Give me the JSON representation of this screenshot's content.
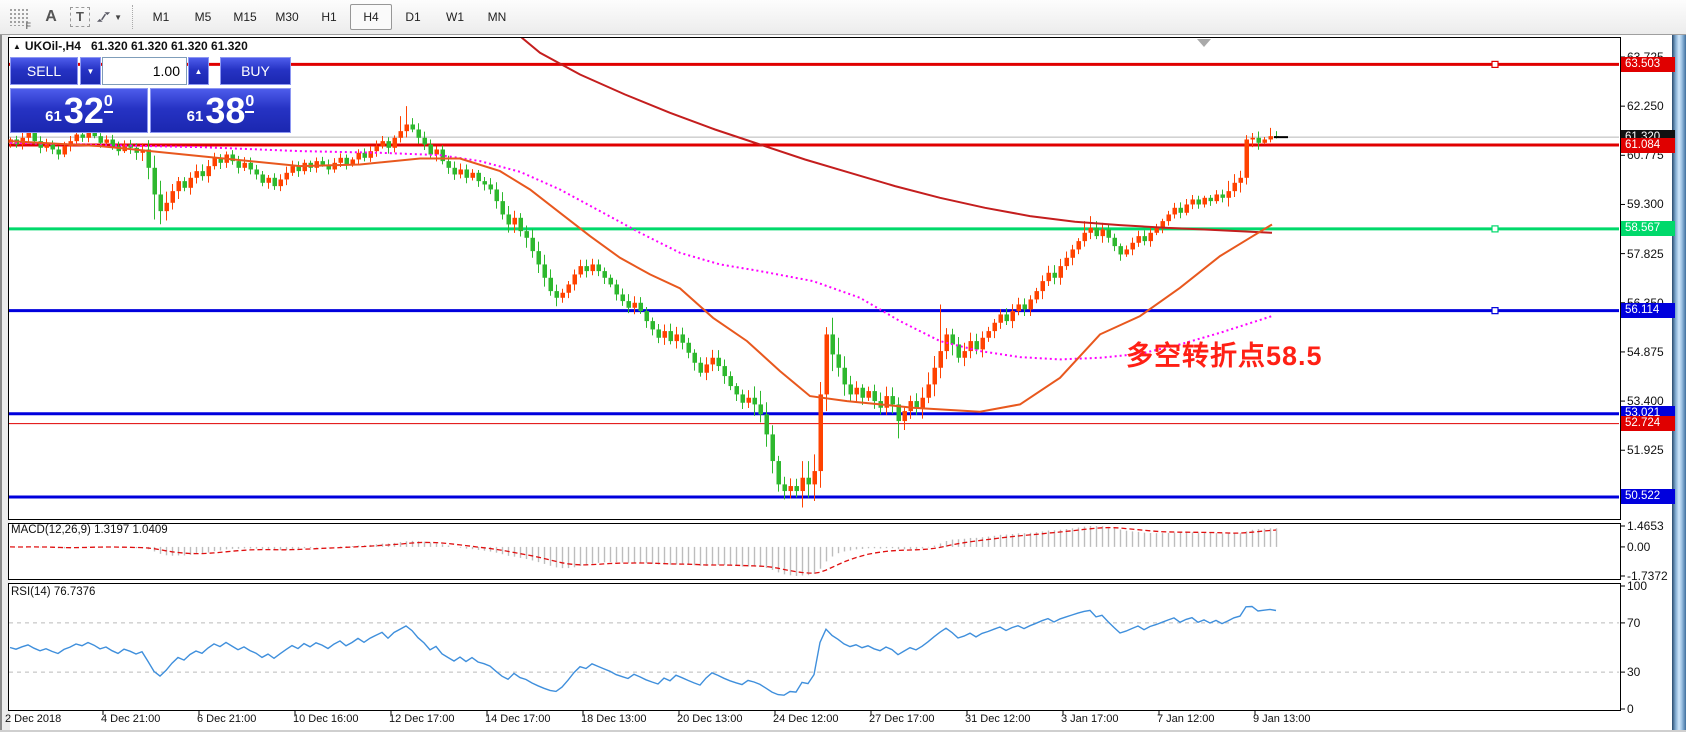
{
  "toolbar": {
    "icons": [
      {
        "name": "grid-f-icon",
        "letter": "F"
      },
      {
        "name": "label-a-icon",
        "letter": "A"
      },
      {
        "name": "textbox-t-icon",
        "letter": "T"
      },
      {
        "name": "arrange-arrows-icon",
        "letter": ""
      }
    ],
    "timeframes": [
      "M1",
      "M5",
      "M15",
      "M30",
      "H1",
      "H4",
      "D1",
      "W1",
      "MN"
    ],
    "active_timeframe": "H4"
  },
  "chart": {
    "title": {
      "symbol": "UKOil-,H4",
      "quotes": "61.320 61.320 61.320 61.320"
    },
    "trade_panel": {
      "sell_label": "SELL",
      "buy_label": "BUY",
      "volume": "1.00",
      "sell_price": {
        "prefix": "61",
        "main": "32",
        "pip": "0"
      },
      "buy_price": {
        "prefix": "61",
        "main": "38",
        "pip": "0"
      }
    },
    "annotation": "多空转折点58.5"
  },
  "chart_data": {
    "type": "candlestick",
    "symbol": "UKOil",
    "timeframe": "H4",
    "colors": {
      "bull": "#ff4200",
      "bear": "#2eb82e",
      "ma_long": "#c41e1e",
      "ma_mid": "#ff00ff",
      "ma_fast": "#e8581e",
      "macd_hist": "#bdbdbd",
      "macd_signal": "#e01010",
      "rsi_line": "#3f8fdc",
      "current_line": "#b8b8b8"
    },
    "price_axis": {
      "ticks": [
        63.725,
        62.25,
        60.775,
        59.3,
        57.825,
        56.35,
        54.875,
        53.4,
        51.925
      ],
      "tick_labels": [
        "63.725",
        "62.250",
        "60.775",
        "59.300",
        "57.825",
        "56.350",
        "54.875",
        "53.400",
        "51.925"
      ]
    },
    "levels": [
      {
        "price": 63.503,
        "label": "63.503",
        "color": "#e00000",
        "width": 3,
        "handle": true
      },
      {
        "price": 61.32,
        "label": "61.320",
        "color": "#b8b8b8",
        "width": 1,
        "badge": "#111111",
        "current": true
      },
      {
        "price": 61.084,
        "label": "61.084",
        "color": "#e00000",
        "width": 3
      },
      {
        "price": 58.567,
        "label": "58.567",
        "color": "#00d96b",
        "width": 3,
        "handle": true
      },
      {
        "price": 56.114,
        "label": "56.114",
        "color": "#0000dd",
        "width": 3,
        "handle": true
      },
      {
        "price": 53.021,
        "label": "53.021",
        "color": "#0000dd",
        "width": 3
      },
      {
        "price": 52.724,
        "label": "52.724",
        "color": "#e00000",
        "width": 1
      },
      {
        "price": 50.522,
        "label": "50.522",
        "color": "#0000dd",
        "width": 3
      }
    ],
    "first_open": 61.15,
    "closes": [
      61.25,
      61.1,
      61.3,
      61.45,
      61.2,
      61.0,
      61.15,
      60.95,
      60.8,
      61.05,
      61.2,
      61.4,
      61.3,
      61.5,
      61.35,
      61.15,
      61.25,
      61.05,
      60.9,
      61.1,
      61.0,
      60.85,
      60.95,
      60.4,
      59.6,
      59.1,
      59.35,
      59.7,
      60.0,
      59.8,
      60.1,
      60.3,
      60.15,
      60.45,
      60.7,
      60.55,
      60.8,
      60.6,
      60.4,
      60.55,
      60.35,
      60.2,
      59.95,
      60.1,
      59.85,
      60.05,
      60.25,
      60.45,
      60.3,
      60.55,
      60.4,
      60.6,
      60.5,
      60.35,
      60.55,
      60.7,
      60.5,
      60.65,
      60.85,
      60.7,
      60.9,
      61.05,
      61.2,
      61.0,
      61.3,
      61.5,
      61.7,
      61.55,
      61.3,
      61.1,
      60.8,
      60.95,
      60.6,
      60.4,
      60.2,
      60.35,
      60.1,
      60.25,
      60.0,
      59.9,
      59.75,
      59.4,
      59.0,
      58.7,
      58.9,
      58.5,
      58.3,
      57.9,
      57.5,
      57.1,
      56.7,
      56.5,
      56.65,
      56.9,
      57.2,
      57.45,
      57.3,
      57.5,
      57.3,
      57.1,
      56.9,
      56.6,
      56.4,
      56.2,
      56.35,
      56.1,
      55.8,
      55.55,
      55.3,
      55.5,
      55.2,
      55.4,
      55.15,
      54.85,
      54.55,
      54.25,
      54.5,
      54.7,
      54.45,
      54.15,
      53.85,
      53.6,
      53.35,
      53.5,
      53.3,
      53.0,
      52.4,
      51.6,
      50.9,
      50.7,
      50.85,
      50.7,
      51.1,
      50.9,
      51.3,
      53.6,
      55.4,
      54.8,
      54.4,
      53.9,
      53.6,
      53.8,
      53.5,
      53.7,
      53.4,
      53.2,
      53.55,
      53.3,
      52.8,
      53.1,
      53.4,
      53.2,
      53.5,
      53.9,
      54.4,
      54.9,
      55.4,
      55.1,
      54.7,
      54.9,
      55.2,
      54.95,
      55.3,
      55.5,
      55.75,
      56.0,
      55.8,
      56.1,
      56.3,
      56.15,
      56.45,
      56.7,
      57.0,
      57.25,
      57.1,
      57.45,
      57.7,
      57.95,
      58.2,
      58.45,
      58.6,
      58.35,
      58.55,
      58.3,
      58.05,
      57.8,
      57.95,
      58.15,
      58.35,
      58.2,
      58.45,
      58.6,
      58.8,
      59.0,
      59.2,
      59.05,
      59.3,
      59.45,
      59.3,
      59.5,
      59.4,
      59.6,
      59.5,
      59.7,
      59.95,
      60.1,
      61.25,
      61.3,
      61.15,
      61.25,
      61.35,
      61.32
    ],
    "spikes": {
      "24": {
        "low": 58.85
      },
      "65": {
        "high": 61.95
      },
      "66": {
        "high": 62.25
      },
      "129": {
        "low": 50.45
      },
      "130": {
        "low": 50.48
      },
      "136": {
        "high": 55.62
      },
      "148": {
        "low": 52.28
      },
      "155": {
        "high": 56.3
      },
      "179": {
        "high": 58.8
      },
      "180": {
        "high": 58.95
      },
      "206": {
        "low": 59.9
      },
      "210": {
        "high": 61.6
      },
      "211": {
        "high": 61.5
      }
    },
    "moving_averages": [
      {
        "name": "ma-long",
        "color": "#c41e1e",
        "width": 2,
        "dash": "",
        "points": [
          [
            518,
            64.4
          ],
          [
            540,
            63.85
          ],
          [
            580,
            63.2
          ],
          [
            625,
            62.6
          ],
          [
            670,
            62.05
          ],
          [
            715,
            61.55
          ],
          [
            760,
            61.1
          ],
          [
            805,
            60.65
          ],
          [
            850,
            60.25
          ],
          [
            895,
            59.85
          ],
          [
            940,
            59.5
          ],
          [
            985,
            59.2
          ],
          [
            1030,
            58.95
          ],
          [
            1075,
            58.78
          ],
          [
            1120,
            58.68
          ],
          [
            1165,
            58.6
          ],
          [
            1210,
            58.54
          ],
          [
            1272,
            58.45
          ]
        ]
      },
      {
        "name": "ma-mid",
        "color": "#ff00ff",
        "width": 2,
        "dash": "2 3",
        "points": [
          [
            10,
            61.15
          ],
          [
            100,
            61.08
          ],
          [
            200,
            61.02
          ],
          [
            300,
            60.9
          ],
          [
            380,
            60.85
          ],
          [
            440,
            60.78
          ],
          [
            480,
            60.6
          ],
          [
            520,
            60.28
          ],
          [
            560,
            59.75
          ],
          [
            600,
            59.1
          ],
          [
            640,
            58.45
          ],
          [
            680,
            57.85
          ],
          [
            720,
            57.5
          ],
          [
            760,
            57.3
          ],
          [
            813,
            57.0
          ],
          [
            860,
            56.5
          ],
          [
            900,
            55.8
          ],
          [
            940,
            55.2
          ],
          [
            980,
            54.9
          ],
          [
            1020,
            54.72
          ],
          [
            1060,
            54.65
          ],
          [
            1100,
            54.7
          ],
          [
            1140,
            54.82
          ],
          [
            1180,
            55.1
          ],
          [
            1220,
            55.45
          ],
          [
            1272,
            55.95
          ]
        ]
      },
      {
        "name": "ma-fast",
        "color": "#e8581e",
        "width": 2,
        "dash": "",
        "points": [
          [
            10,
            61.2
          ],
          [
            100,
            61.05
          ],
          [
            200,
            60.75
          ],
          [
            300,
            60.45
          ],
          [
            360,
            60.5
          ],
          [
            420,
            60.68
          ],
          [
            460,
            60.68
          ],
          [
            500,
            60.3
          ],
          [
            530,
            59.75
          ],
          [
            560,
            59.05
          ],
          [
            590,
            58.35
          ],
          [
            620,
            57.7
          ],
          [
            650,
            57.2
          ],
          [
            680,
            56.78
          ],
          [
            713,
            55.9
          ],
          [
            747,
            55.2
          ],
          [
            780,
            54.3
          ],
          [
            810,
            53.55
          ],
          [
            847,
            53.4
          ],
          [
            880,
            53.3
          ],
          [
            913,
            53.2
          ],
          [
            940,
            53.15
          ],
          [
            980,
            53.08
          ],
          [
            1020,
            53.3
          ],
          [
            1060,
            54.1
          ],
          [
            1100,
            55.4
          ],
          [
            1140,
            55.95
          ],
          [
            1180,
            56.8
          ],
          [
            1220,
            57.75
          ],
          [
            1250,
            58.3
          ],
          [
            1272,
            58.7
          ]
        ]
      }
    ],
    "time_axis": {
      "labels": [
        "2 Dec 2018",
        "4 Dec 21:00",
        "6 Dec 21:00",
        "10 Dec 16:00",
        "12 Dec 17:00",
        "14 Dec 17:00",
        "18 Dec 13:00",
        "20 Dec 13:00",
        "24 Dec 12:00",
        "27 Dec 17:00",
        "31 Dec 12:00",
        "3 Jan 17:00",
        "7 Jan 12:00",
        "9 Jan 13:00"
      ],
      "x": [
        5,
        101,
        197,
        293,
        389,
        485,
        581,
        677,
        773,
        869,
        965,
        1061,
        1157,
        1253
      ]
    },
    "indicators": {
      "macd": {
        "label": "MACD(12,26,9)",
        "values": "1.3197 1.0409",
        "axis": [
          "1.4653",
          "0.00",
          "-1.7372"
        ],
        "params": [
          12,
          26,
          9
        ]
      },
      "rsi": {
        "label": "RSI(14)",
        "value": "76.7376",
        "period": 14,
        "axis": [
          "100",
          "70",
          "30",
          "0"
        ],
        "levels": [
          70,
          30
        ]
      }
    }
  }
}
